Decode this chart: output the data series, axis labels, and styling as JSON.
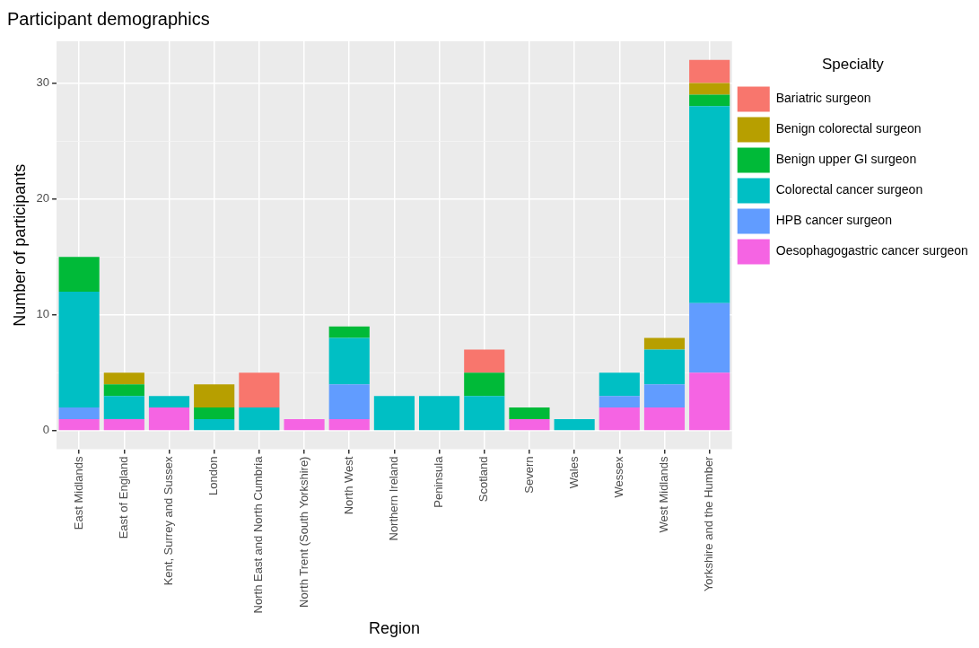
{
  "chart_data": {
    "type": "bar",
    "title": "Participant demographics",
    "xlabel": "Region",
    "ylabel": "Number of participants",
    "legend_title": "Specialty",
    "categories": [
      "East Midlands",
      "East of England",
      "Kent, Surrey and Sussex",
      "London",
      "North East and North Cumbria",
      "North Trent (South Yorkshire)",
      "North West",
      "Northern Ireland",
      "Peninsula",
      "Scotland",
      "Severn",
      "Wales",
      "Wessex",
      "West Midlands",
      "Yorkshire and the Humber"
    ],
    "stacked": true,
    "series": [
      {
        "name": "Oesophagogastric cancer surgeon",
        "color": "#f564e3",
        "values": [
          1,
          1,
          2,
          0,
          0,
          1,
          1,
          0,
          0,
          0,
          1,
          0,
          2,
          2,
          5
        ]
      },
      {
        "name": "HPB cancer surgeon",
        "color": "#619cff",
        "values": [
          1,
          0,
          0,
          0,
          0,
          0,
          3,
          0,
          0,
          0,
          0,
          0,
          1,
          2,
          6
        ]
      },
      {
        "name": "Colorectal cancer surgeon",
        "color": "#00bfc4",
        "values": [
          10,
          2,
          1,
          1,
          2,
          0,
          4,
          3,
          3,
          3,
          0,
          1,
          2,
          3,
          17
        ]
      },
      {
        "name": "Benign upper GI surgeon",
        "color": "#00ba38",
        "values": [
          3,
          1,
          0,
          1,
          0,
          0,
          1,
          0,
          0,
          2,
          1,
          0,
          0,
          0,
          1
        ]
      },
      {
        "name": "Benign colorectal surgeon",
        "color": "#b79f00",
        "values": [
          0,
          1,
          0,
          2,
          0,
          0,
          0,
          0,
          0,
          0,
          0,
          0,
          0,
          1,
          1
        ]
      },
      {
        "name": "Bariatric surgeon",
        "color": "#f8766d",
        "values": [
          0,
          0,
          0,
          0,
          3,
          0,
          0,
          0,
          0,
          2,
          0,
          0,
          0,
          0,
          2
        ]
      }
    ],
    "ylim": [
      -1.6,
      33.6
    ],
    "yticks": [
      0,
      {
        "value": 5,
        "label": null
      },
      10,
      {
        "value": 15,
        "label": null
      },
      20,
      {
        "value": 25,
        "label": null
      },
      30
    ],
    "grid": true,
    "legend": "right"
  }
}
